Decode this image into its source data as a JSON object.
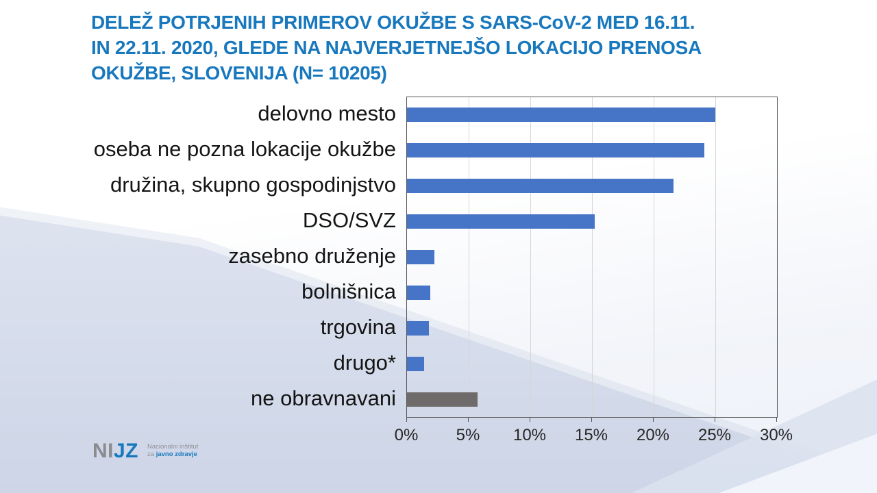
{
  "title": {
    "lines": [
      "DELEŽ POTRJENIH PRIMEROV OKUŽBE S SARS-CoV-2 MED 16.11.",
      "IN 22.11. 2020, GLEDE NA NAJVERJETNEJŠO LOKACIJO PRENOSA",
      "OKUŽBE, SLOVENIJA  (N= 10205)"
    ],
    "color": "#1878be"
  },
  "chart_data": {
    "type": "bar",
    "orientation": "horizontal",
    "title": "DELEŽ POTRJENIH PRIMEROV OKUŽBE S SARS-CoV-2 MED 16.11. IN 22.11. 2020, GLEDE NA NAJVERJETNEJŠO LOKACIJO PRENOSA OKUŽBE, SLOVENIJA (N= 10205)",
    "categories": [
      "delovno mesto",
      "oseba ne pozna lokacije okužbe",
      "družina, skupno gospodinjstvo",
      "DSO/SVZ",
      "zasebno druženje",
      "bolnišnica",
      "trgovina",
      "drugo*",
      "ne obravnavani"
    ],
    "values": [
      25.0,
      24.1,
      21.6,
      15.2,
      2.2,
      1.9,
      1.8,
      1.4,
      5.7
    ],
    "unit": "%",
    "bar_colors": [
      "#4674c6",
      "#4674c6",
      "#4674c6",
      "#4674c6",
      "#4674c6",
      "#4674c6",
      "#4674c6",
      "#4674c6",
      "#6f6b6b"
    ],
    "xlim": [
      0,
      30
    ],
    "x_ticks": [
      0,
      5,
      10,
      15,
      20,
      25,
      30
    ],
    "x_tick_labels": [
      "0%",
      "5%",
      "10%",
      "15%",
      "20%",
      "25%",
      "30%"
    ],
    "grid": true,
    "legend": false
  },
  "logo": {
    "mark_gray": "NI",
    "mark_blue": "JZ",
    "line1": "Nacionalni inštitut",
    "line2_prefix": "za ",
    "line2_bold": "javno zdravje"
  },
  "colors": {
    "bar_blue": "#4674c6",
    "bar_gray": "#6f6b6b",
    "title_blue": "#1878be",
    "gridline": "#d6d6d6",
    "plot_border": "#555555"
  }
}
